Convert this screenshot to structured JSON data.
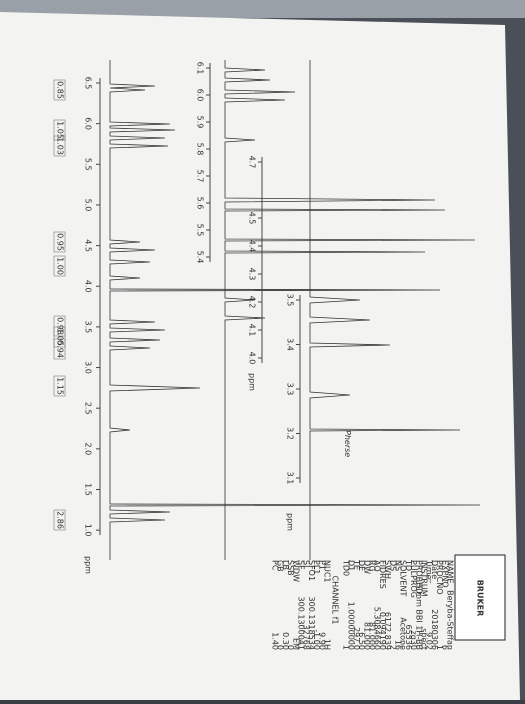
{
  "spectrum": {
    "axis_ticks": [
      6.5,
      {
        "value": 6,
        "label": "6.0"
      },
      5.5,
      {
        "value": 5,
        "label": "5.0"
      },
      4.5,
      {
        "value": 4,
        "label": "4.0"
      },
      3.5,
      {
        "value": 3,
        "label": "3.0"
      },
      2.5,
      {
        "value": 2,
        "label": "2.0"
      },
      1.5,
      {
        "value": 1,
        "label": "1.0"
      }
    ],
    "axis_unit": "ppm",
    "integrals": [
      0.85,
      1.05,
      1.03,
      0.95,
      {
        "value": 1,
        "label": "1.00"
      },
      0.98,
      1.05,
      0.94,
      1.15,
      2.86
    ]
  },
  "inset_1": {
    "axis_ticks": [
      6.1,
      {
        "value": 6,
        "label": "6.0"
      },
      5.9,
      5.8,
      5.7,
      5.6,
      5.5,
      5.4
    ]
  },
  "inset_2": {
    "axis_ticks": [
      4.7,
      4.5,
      4.4,
      4.3,
      4.2,
      4.1,
      {
        "value": 4,
        "label": "4.0"
      }
    ],
    "axis_unit": "ppm"
  },
  "inset_3": {
    "axis_ticks": [
      3.5,
      3.4,
      3.3,
      3.2,
      3.1
    ],
    "axis_unit": "ppm"
  },
  "note": "Pherse",
  "logo": "BRUKER",
  "parameters": [
    [
      "NAME",
      "Beryba-Steffan"
    ],
    [
      "EXPNO",
      "6"
    ],
    [
      "PROCNO",
      "1"
    ],
    [
      "Date_",
      "20180306"
    ],
    [
      "Time",
      "9.02"
    ],
    [
      "INSTRUM",
      "spect"
    ],
    [
      "PROBHD",
      "5 mm BBI 1H-BB"
    ],
    [
      "PULPROG",
      "zg30"
    ],
    [
      "TD",
      "65536"
    ],
    [
      "SOLVENT",
      "Acetone"
    ],
    [
      "NS",
      "16"
    ],
    [
      "DS",
      "2"
    ],
    [
      "SWH",
      "6172.839"
    ],
    [
      "FIDRES",
      "0.094190"
    ],
    [
      "AQ",
      "5.3084660"
    ],
    [
      "RG",
      "81.000"
    ],
    [
      "DW",
      "81.000"
    ],
    [
      "DE",
      "6.50"
    ],
    [
      "TE",
      "297.0"
    ],
    [
      "D1",
      "1.00000000"
    ],
    [
      "TD0",
      "1"
    ]
  ],
  "channel": "CHANNEL f1",
  "channel_parameters": [
    [
      "NUC1",
      "1H"
    ],
    [
      "P1",
      "9.90"
    ],
    [
      "PL1",
      "-1.00"
    ],
    [
      "SFO1",
      "300.1318534"
    ],
    [
      "SI",
      "32768"
    ],
    [
      "SF",
      "300.1300041"
    ],
    [
      "WDW",
      "EM"
    ],
    [
      "SSB",
      "0"
    ],
    [
      "LB",
      "0.30"
    ],
    [
      "GB",
      "0"
    ],
    [
      "PC",
      "1.40"
    ]
  ]
}
